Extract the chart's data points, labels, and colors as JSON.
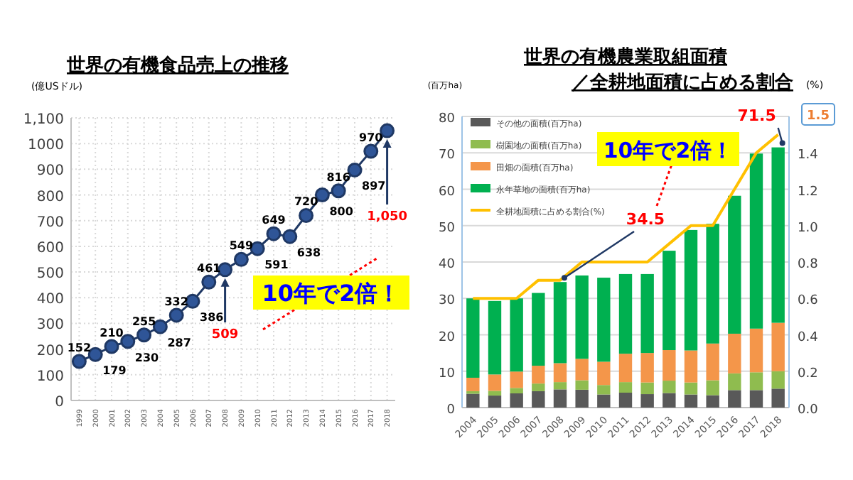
{
  "chart_data": [
    {
      "type": "line",
      "title": "世界の有機食品売上の推移",
      "ylabel": "(億USドル)",
      "categories": [
        "1999",
        "2000",
        "2001",
        "2002",
        "2003",
        "2004",
        "2005",
        "2006",
        "2007",
        "2008",
        "2009",
        "2010",
        "2011",
        "2012",
        "2013",
        "2014",
        "2015",
        "2016",
        "2017",
        "2018"
      ],
      "series": [
        {
          "color": "#1f3864",
          "values": [
            152,
            179,
            210,
            230,
            255,
            287,
            332,
            386,
            461,
            509,
            549,
            591,
            649,
            638,
            720,
            800,
            816,
            897,
            970,
            1050
          ],
          "value_labels": [
            "152",
            "179",
            "210",
            "230",
            "255",
            "287",
            "332",
            "386",
            "461",
            null,
            "549",
            "591",
            "649",
            "638",
            "720",
            "800",
            "816",
            "897",
            "970",
            null
          ]
        }
      ],
      "ylim": [
        0,
        1100
      ],
      "yticks": [
        0,
        100,
        200,
        300,
        400,
        500,
        600,
        700,
        800,
        900,
        1000,
        {
          "value": 1100,
          "label": "1,100"
        }
      ],
      "grid": true,
      "marker": "circle",
      "annotations": [
        {
          "text": "509",
          "x": "2008",
          "y": 509
        },
        {
          "text": "1,050",
          "x": "2018",
          "y": 1050
        },
        "10年で2倍！"
      ]
    },
    {
      "type": "bar",
      "stacked": true,
      "title": "世界の有機農業取組面積",
      "subtitle": "／全耕地面積に占める割合",
      "ylabel": "(百万ha)",
      "y2label": "(%)",
      "categories": [
        "2004",
        "2005",
        "2006",
        "2007",
        "2008",
        "2009",
        "2010",
        "2011",
        "2012",
        "2013",
        "2014",
        "2015",
        "2016",
        "2017",
        "2018"
      ],
      "series": [
        {
          "name": "その他の面積(百万ha)",
          "color": "#595959",
          "values": [
            3.8,
            3.3,
            3.9,
            4.5,
            5.0,
            4.9,
            3.6,
            4.1,
            3.7,
            4.0,
            3.6,
            3.4,
            4.8,
            4.8,
            5.2
          ]
        },
        {
          "name": "樹園地の面積(百万ha)",
          "color": "#8fbc4f",
          "values": [
            0.7,
            1.3,
            1.5,
            2.1,
            2.0,
            2.6,
            2.6,
            2.9,
            3.2,
            3.4,
            3.3,
            4.1,
            4.6,
            4.9,
            4.8
          ]
        },
        {
          "name": "田畑の面積(百万ha)",
          "color": "#f4964a",
          "values": [
            3.7,
            4.5,
            4.5,
            4.9,
            5.2,
            5.9,
            6.4,
            7.8,
            8.1,
            8.4,
            8.8,
            10.1,
            10.9,
            12.0,
            13.3
          ]
        },
        {
          "name": "永年草地の面積(百万ha)",
          "color": "#00b050",
          "values": [
            21.8,
            20.2,
            20.1,
            20.0,
            22.3,
            22.9,
            23.1,
            21.9,
            21.7,
            27.3,
            33.1,
            32.9,
            37.9,
            48.1,
            48.2
          ]
        },
        {
          "name": "全耕地面積に占める割合(%)",
          "type": "line",
          "axis": "y2",
          "color": "#ffc000",
          "values": [
            0.6,
            0.6,
            0.6,
            0.7,
            0.7,
            0.8,
            0.8,
            0.8,
            0.8,
            0.9,
            1.0,
            1.0,
            1.2,
            1.4,
            1.5
          ]
        }
      ],
      "ylim": [
        0,
        80
      ],
      "yticks": [
        0,
        10,
        20,
        30,
        40,
        50,
        60,
        70,
        80
      ],
      "y2lim": [
        0,
        1.6
      ],
      "y2ticks": [
        {
          "value": 0,
          "label": "0.0"
        },
        0.2,
        0.4,
        0.6,
        0.8,
        {
          "value": 1,
          "label": "1.0"
        },
        1.2,
        1.4
      ],
      "grid": "y",
      "legend": "top left",
      "annotations": [
        {
          "text": "34.5",
          "x": "2008",
          "y": 34.5
        },
        {
          "text": "71.5",
          "x": "2018",
          "y": 71.5
        },
        "10年で2倍！",
        "1.5"
      ]
    }
  ]
}
